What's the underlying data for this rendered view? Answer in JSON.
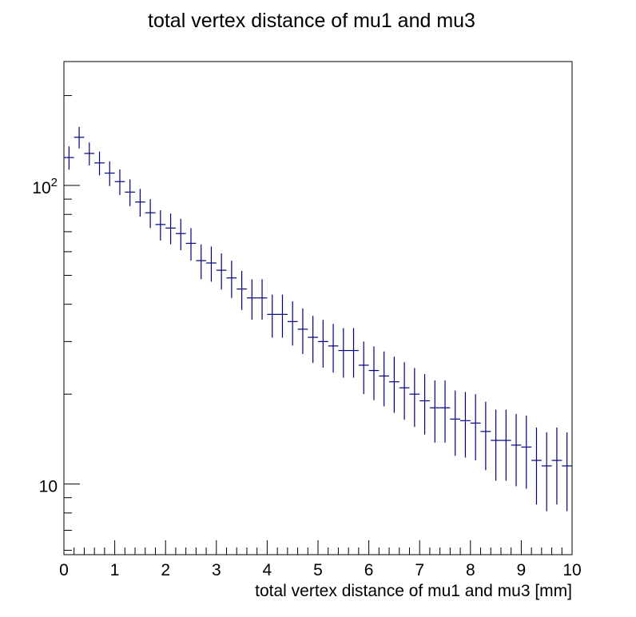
{
  "chart_data": {
    "type": "scatter",
    "title": "total vertex distance of mu1 and mu3",
    "xlabel": "total vertex distance of mu1 and mu3 [mm]",
    "ylabel": "",
    "xlim": [
      0,
      10
    ],
    "ylim": [
      5.8,
      260
    ],
    "log_y": true,
    "grid": false,
    "marker_color": "#000080",
    "x_ticks": [
      {
        "value": 0,
        "label": "0"
      },
      {
        "value": 1,
        "label": "1"
      },
      {
        "value": 2,
        "label": "2"
      },
      {
        "value": 3,
        "label": "3"
      },
      {
        "value": 4,
        "label": "4"
      },
      {
        "value": 5,
        "label": "5"
      },
      {
        "value": 6,
        "label": "6"
      },
      {
        "value": 7,
        "label": "7"
      },
      {
        "value": 8,
        "label": "8"
      },
      {
        "value": 9,
        "label": "9"
      },
      {
        "value": 10,
        "label": "10"
      }
    ],
    "y_ticks": [
      {
        "value": 10,
        "label_base": "10",
        "label_exp": ""
      },
      {
        "value": 100,
        "label_base": "10",
        "label_exp": "2"
      }
    ],
    "bin_width": 0.2,
    "x": [
      0.1,
      0.3,
      0.5,
      0.7,
      0.9,
      1.1,
      1.3,
      1.5,
      1.7,
      1.9,
      2.1,
      2.3,
      2.5,
      2.7,
      2.9,
      3.1,
      3.3,
      3.5,
      3.7,
      3.9,
      4.1,
      4.3,
      4.5,
      4.7,
      4.9,
      5.1,
      5.3,
      5.5,
      5.7,
      5.9,
      6.1,
      6.3,
      6.5,
      6.7,
      6.9,
      7.1,
      7.3,
      7.5,
      7.7,
      7.9,
      8.1,
      8.3,
      8.5,
      8.7,
      8.9,
      9.1,
      9.3,
      9.5,
      9.7,
      9.9
    ],
    "y": [
      124,
      145,
      128,
      119,
      110,
      103,
      95,
      88,
      81,
      74,
      72,
      69,
      64,
      56,
      55,
      52,
      49,
      45,
      42,
      42,
      37,
      37,
      35,
      33,
      31,
      30,
      29,
      28,
      28,
      25,
      24,
      23,
      22,
      21,
      20,
      19,
      18,
      18,
      16.5,
      16.3,
      16,
      15,
      14,
      14,
      13.5,
      13.3,
      12,
      11.5,
      12,
      11.5
    ]
  }
}
